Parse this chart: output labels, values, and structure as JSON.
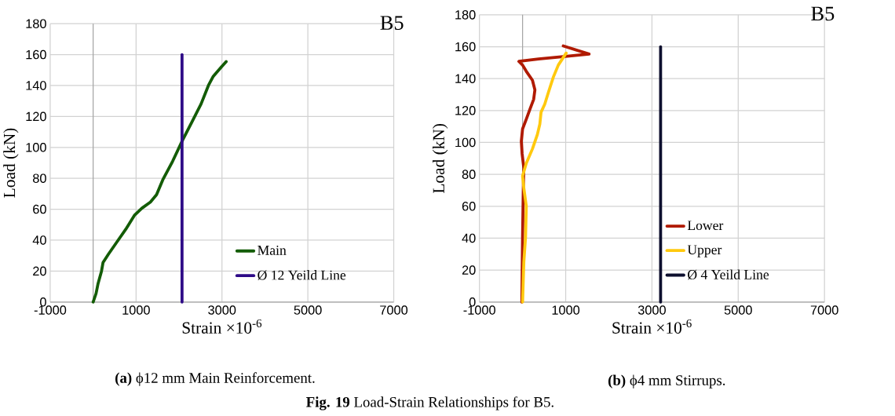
{
  "chart_data": [
    {
      "type": "line",
      "title": "B5",
      "xlabel": "Strain ×10$^{-6}$",
      "ylabel": "Load (kN)",
      "xlim": [
        -1000,
        7000
      ],
      "xticks": [
        -1000,
        1000,
        3000,
        5000,
        7000
      ],
      "ylim": [
        0,
        180
      ],
      "yticks": [
        0,
        20,
        40,
        60,
        80,
        100,
        120,
        140,
        160,
        180
      ],
      "grid": true,
      "legend": "bottom right",
      "series": [
        {
          "name": "Main",
          "color": "#135c06",
          "x": [
            0,
            69,
            115,
            195,
            230,
            357,
            557,
            759,
            960,
            1133,
            1333,
            1477,
            1621,
            1850,
            2080,
            2310,
            2512,
            2684,
            2798,
            2971,
            3098
          ],
          "values": [
            0,
            5.6,
            12,
            20,
            25.5,
            31,
            39,
            47,
            56,
            60.6,
            64.6,
            69.4,
            79,
            91,
            104.5,
            117,
            128,
            140,
            146,
            151.5,
            155.5
          ]
        },
        {
          "name": "Ø 12 Yeild Line",
          "color": "#2e0a87",
          "x": [
            2070,
            2070
          ],
          "values": [
            0,
            160
          ]
        }
      ],
      "annotations": [
        "**(a)** ϕ12 mm Main Reinforcement.",
        "**Fig. 19** Load-Strain Relationships for B5."
      ]
    },
    {
      "type": "line",
      "title": "B5",
      "xlabel": "Strain ×10$^{-6}$",
      "ylabel": "Load (kN)",
      "xlim": [
        -1000,
        7000
      ],
      "xticks": [
        -1000,
        1000,
        3000,
        5000,
        7000
      ],
      "ylim": [
        0,
        180
      ],
      "yticks": [
        0,
        20,
        40,
        60,
        80,
        100,
        120,
        140,
        160,
        180
      ],
      "grid": true,
      "legend": "bottom right",
      "series": [
        {
          "name": "Lower",
          "color": "#b01a00",
          "x": [
            -17,
            0,
            17,
            29,
            -11,
            -29,
            0,
            86,
            171,
            257,
            286,
            229,
            86,
            0,
            -86,
            371,
            943,
            1543,
            943
          ],
          "values": [
            0,
            40.8,
            71.5,
            84,
            93,
            100.8,
            108.5,
            114.6,
            120.8,
            127,
            133,
            139,
            144.6,
            148.5,
            150.8,
            152.3,
            153.8,
            155.4,
            160.5
          ]
        },
        {
          "name": "Upper",
          "color": "#ffc90e",
          "x": [
            0,
            29,
            69,
            86,
            29,
            0,
            86,
            229,
            343,
            400,
            429,
            514,
            600,
            714,
            829,
            1011
          ],
          "values": [
            0,
            25,
            40.8,
            60,
            71.5,
            79,
            87,
            96,
            105,
            111.5,
            119,
            124,
            131.5,
            141,
            148.5,
            156
          ]
        },
        {
          "name": "Ø 4 Yeild Line",
          "color": "#0d0f2e",
          "x": [
            3200,
            3200
          ],
          "values": [
            0,
            160
          ]
        }
      ],
      "annotations": [
        "**(b)** ϕ4 mm Stirrups."
      ]
    }
  ]
}
